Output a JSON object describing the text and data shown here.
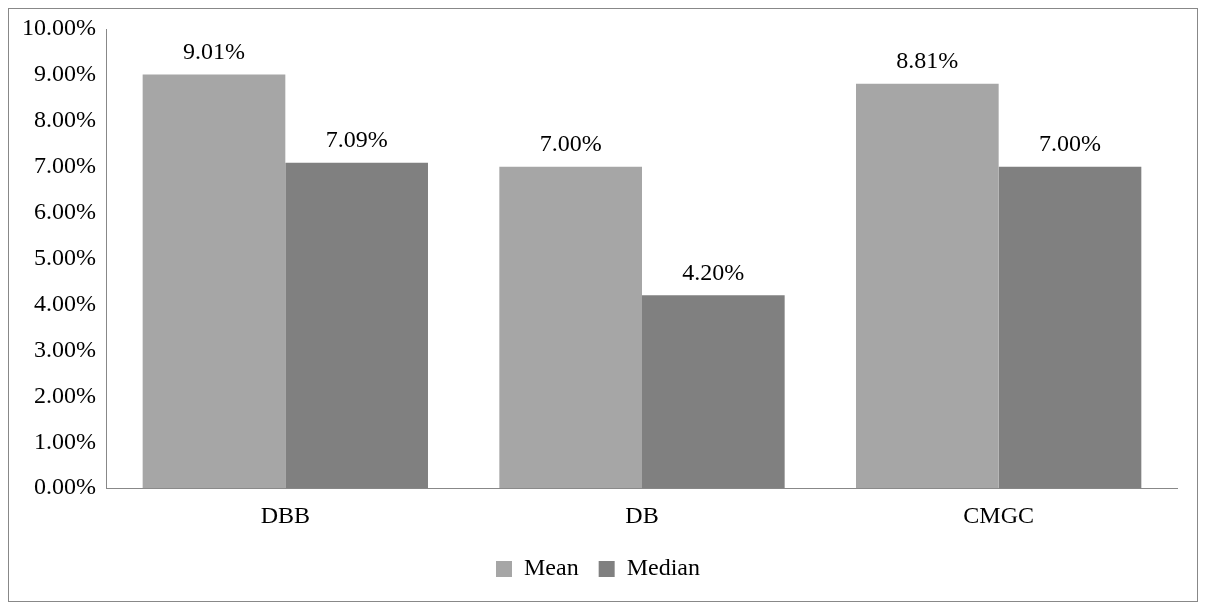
{
  "chart_data": {
    "type": "bar",
    "categories": [
      "DBB",
      "DB",
      "CMGC"
    ],
    "series": [
      {
        "name": "Mean",
        "color": "#a6a6a6",
        "values": [
          9.01,
          7.0,
          8.81
        ],
        "value_labels": [
          "9.01%",
          "7.00%",
          "8.81%"
        ]
      },
      {
        "name": "Median",
        "color": "#808080",
        "values": [
          7.09,
          4.2,
          7.0
        ],
        "value_labels": [
          "7.09%",
          "4.20%",
          "7.00%"
        ]
      }
    ],
    "ylim": [
      0,
      10
    ],
    "yticks": [
      {
        "value": 0,
        "label": "0.00%"
      },
      {
        "value": 1,
        "label": "1.00%"
      },
      {
        "value": 2,
        "label": "2.00%"
      },
      {
        "value": 3,
        "label": "3.00%"
      },
      {
        "value": 4,
        "label": "4.00%"
      },
      {
        "value": 5,
        "label": "5.00%"
      },
      {
        "value": 6,
        "label": "6.00%"
      },
      {
        "value": 7,
        "label": "7.00%"
      },
      {
        "value": 8,
        "label": "8.00%"
      },
      {
        "value": 9,
        "label": "9.00%"
      },
      {
        "value": 10,
        "label": "10.00%"
      }
    ],
    "grid": false,
    "legend": "bottom"
  }
}
